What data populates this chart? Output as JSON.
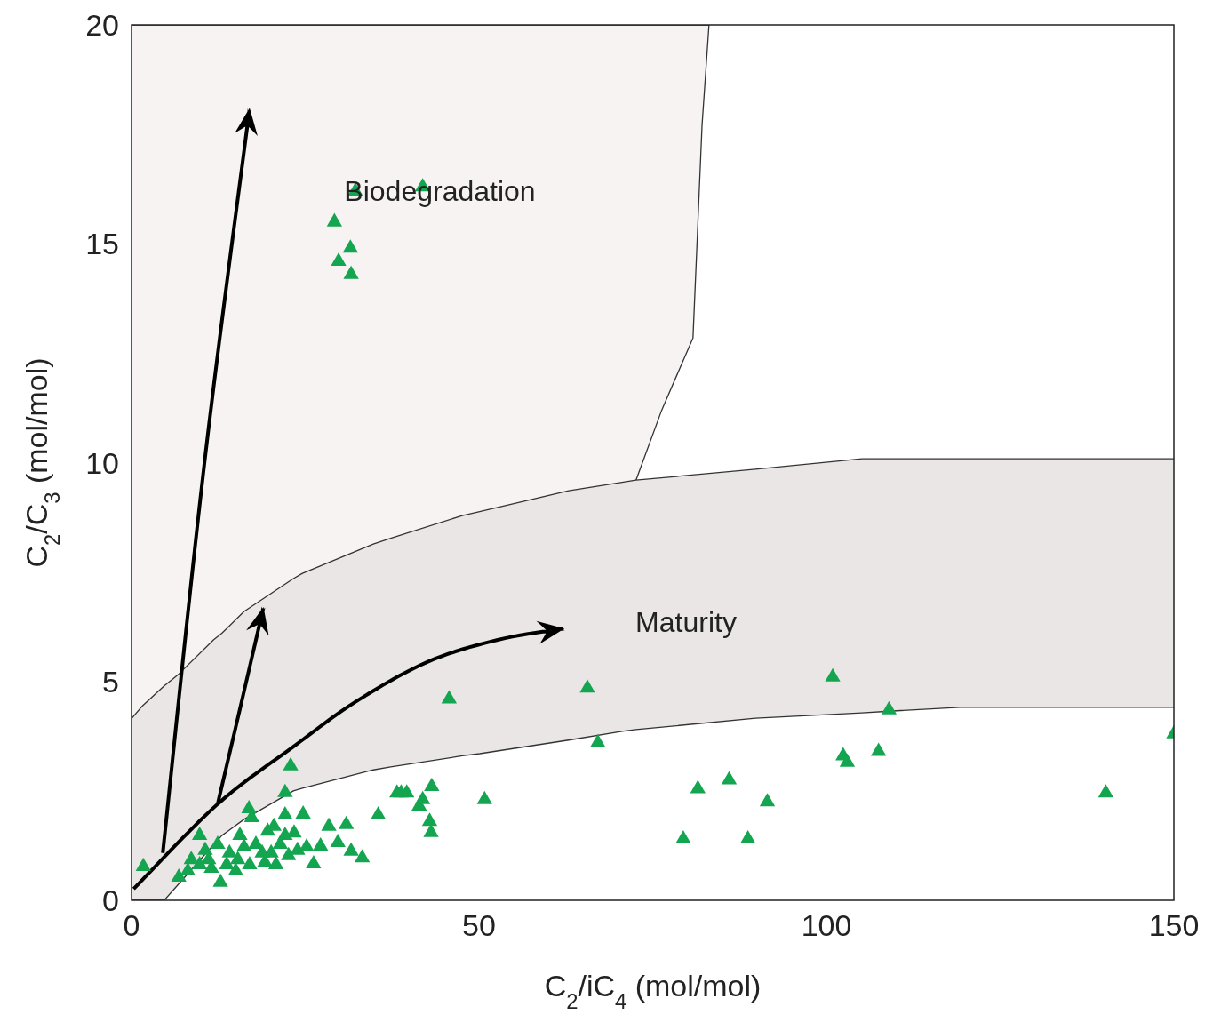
{
  "chart_data": {
    "type": "scatter",
    "xlabel": "C$_{2}$/iC$_{4}$ (mol/mol)",
    "ylabel": "C$_{2}$/C$_{3}$ (mol/mol)",
    "xlim": [
      0,
      150
    ],
    "ylim": [
      0,
      20
    ],
    "xticks": [
      0,
      50,
      100,
      150
    ],
    "yticks": [
      0,
      5,
      10,
      15,
      20
    ],
    "grid": false,
    "annotations": [
      "Biodegradation",
      "Maturity"
    ],
    "series": [
      {
        "type": "area",
        "marker": "none",
        "color": "#f6f3f2",
        "x": [
          0,
          83.1
        ],
        "values": [
          20,
          20
        ]
      },
      {
        "type": "area",
        "marker": "none",
        "color": "#ffffff",
        "x": [
          72.6,
          76.3,
          80.8,
          82.1,
          83.1
        ],
        "values": [
          9.6,
          11.2,
          12.85,
          17.7,
          20
        ]
      },
      {
        "type": "area",
        "marker": "none",
        "color": "#e9e6e5",
        "x": [
          0,
          1.5,
          4.7,
          6.6,
          11.8,
          13,
          16.2,
          23.3,
          24.6,
          34.8,
          37.3,
          47.6,
          50.1,
          62.9,
          70.6,
          72.6,
          89.8,
          105.1,
          109,
          119.2,
          150
        ],
        "values": [
          4.15,
          4.43,
          4.9,
          5.14,
          5.95,
          6.1,
          6.6,
          7.35,
          7.47,
          8.14,
          8.27,
          8.79,
          8.88,
          9.36,
          9.55,
          9.6,
          9.85,
          10.09,
          10.09,
          10.09,
          10.09
        ]
      },
      {
        "type": "area",
        "marker": "none",
        "color": "#ffffff",
        "x": [
          0,
          4.7,
          6.6,
          11.8,
          13,
          16.2,
          23.3,
          24.6,
          34.8,
          37.3,
          47.6,
          50.1,
          62.9,
          70.6,
          72.6,
          89.8,
          105.1,
          109,
          119.2,
          150
        ],
        "values": [
          0,
          0,
          0.34,
          1.27,
          1.48,
          1.85,
          2.5,
          2.56,
          2.98,
          3.05,
          3.3,
          3.35,
          3.66,
          3.86,
          3.9,
          4.16,
          4.28,
          4.32,
          4.41,
          4.41
        ]
      },
      {
        "type": "scatter",
        "marker": "triangle",
        "color": "#14a550",
        "x": [
          32.2,
          41.9,
          29.2,
          31.5,
          29.8,
          31.6,
          45.7,
          65.6,
          67.1,
          100.9,
          109,
          102.4,
          103,
          107.5,
          150,
          140.2,
          81.5,
          86,
          91.5,
          79.4,
          88.7,
          50.8,
          38.2,
          38.8,
          39.6,
          43.2,
          41.9,
          41.4,
          42.9,
          43.1,
          35.5,
          22.9,
          22.1,
          16.9,
          22.1,
          24.7,
          17.3,
          28.4,
          30.9,
          9.8,
          15.6,
          23.4,
          19.6,
          29.7,
          31.6,
          33.2,
          26.2,
          27.2,
          1.7,
          8.6,
          6.8,
          12.8,
          12.4,
          10.6,
          14.1,
          16.2,
          17.9,
          21.4,
          22.1,
          20.5,
          23.9,
          25.2,
          9.8,
          11.5,
          13.7,
          15,
          17,
          19.2,
          20.8,
          8.1,
          11.1,
          15.3,
          18.8,
          22.6,
          20.1
        ],
        "values": [
          16.2,
          16.3,
          15.5,
          14.9,
          14.6,
          14.3,
          4.6,
          4.85,
          3.6,
          5.1,
          4.35,
          3.3,
          3.15,
          3.4,
          3.8,
          2.45,
          2.55,
          2.75,
          2.25,
          1.4,
          1.4,
          2.3,
          2.45,
          2.45,
          2.45,
          2.6,
          2.3,
          2.15,
          1.8,
          1.55,
          1.95,
          3.07,
          2.46,
          2.09,
          1.95,
          1.97,
          1.89,
          1.69,
          1.73,
          1.48,
          1.48,
          1.54,
          1.58,
          1.32,
          1.12,
          0.97,
          0.83,
          1.24,
          0.77,
          0.93,
          0.53,
          0.41,
          1.28,
          1.14,
          1.08,
          1.22,
          1.28,
          1.28,
          1.48,
          1.69,
          1.14,
          1.22,
          0.81,
          0.73,
          0.81,
          0.67,
          0.81,
          0.87,
          0.81,
          0.67,
          0.93,
          0.93,
          1.08,
          1.02,
          1.08
        ]
      }
    ]
  }
}
